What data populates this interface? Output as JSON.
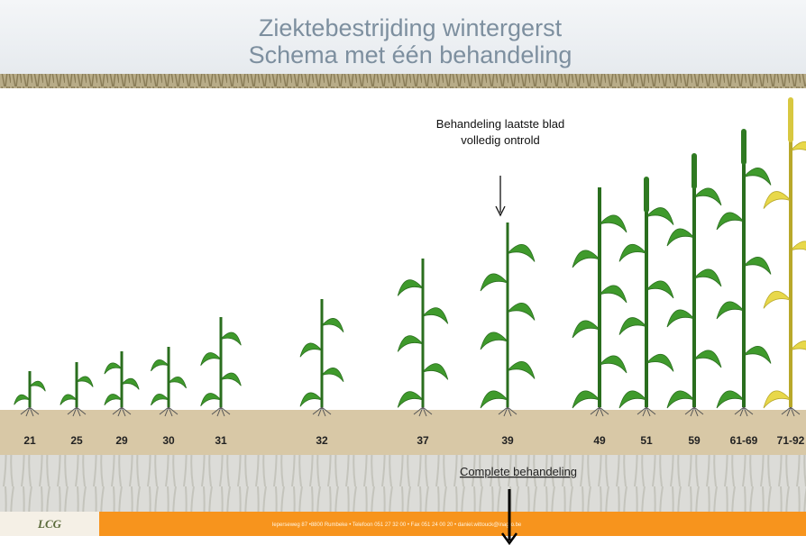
{
  "header": {
    "title_line1": "Ziektebestrijding wintergerst",
    "title_line2": "Schema met één behandeling"
  },
  "annotation": {
    "line1": "Behandeling laatste blad",
    "line2": "volledig ontrold"
  },
  "stages": [
    "21",
    "25",
    "29",
    "30",
    "31",
    "32",
    "37",
    "39",
    "49",
    "51",
    "59",
    "61-69",
    "71-92"
  ],
  "bottom_label": "Complete  behandeling",
  "footer": {
    "logo": "LCG",
    "address": "Ieperseweg 87 •8800 Rumbeke • Telefoon 051 27 32 00 • Fax 051 24 00 20 • daniel.wittouck@inagro.be"
  }
}
